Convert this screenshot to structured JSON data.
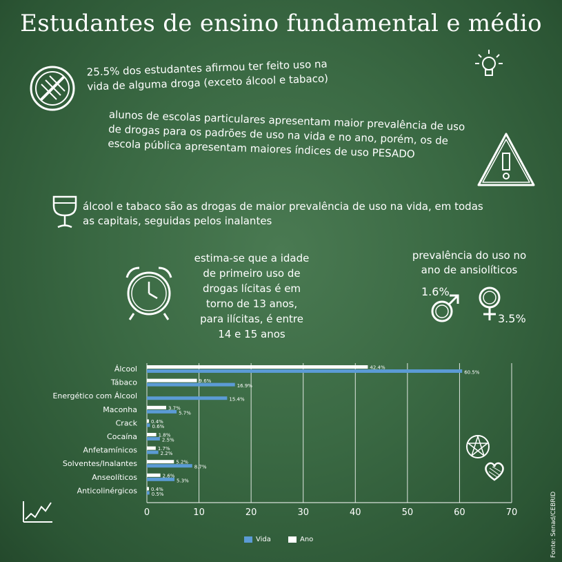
{
  "title": "Estudantes de ensino fundamental e médio",
  "facts": {
    "drug_use": "25.5% dos estudantes afirmou ter feito uso na vida de alguma droga (exceto álcool e tabaco)",
    "private_schools": "alunos de escolas particulares apresentam maior prevalência de uso de drogas para os padrões de uso na vida e no ano, porém, os de escola pública apresentam maiores índices de uso PESADO",
    "alcohol_tobacco": "álcool e tabaco são as drogas de maior prevalência de uso na vida, em todas as capitais, seguidas pelos inalantes",
    "first_use_age": "estima-se que a idade de primeiro uso de drogas lícitas é em torno de 13 anos, para ilícitas, é entre 14 e 15 anos",
    "anxiolytics_label": "prevalência do uso no ano de ansiolíticos",
    "male_pct": "1.6%",
    "female_pct": "3.5%"
  },
  "legend": {
    "vida": "Vida",
    "ano": "Ano"
  },
  "source": "Fonte: Senad/CEBRID",
  "colors": {
    "vida": "#5b9bd5",
    "ano": "#ffffff",
    "axis": "#ffffff"
  },
  "icons": [
    "no-drugs-icon",
    "lightbulb-icon",
    "warning-triangle-icon",
    "wine-glass-icon",
    "alarm-clock-icon",
    "male-symbol-icon",
    "female-symbol-icon",
    "pentagram-icon",
    "heart-icon",
    "chart-doodle-icon"
  ],
  "chart_data": {
    "type": "bar",
    "orientation": "horizontal",
    "categories": [
      "Álcool",
      "Tábaco",
      "Energético com Álcool",
      "Maconha",
      "Crack",
      "Cocaína",
      "Anfetamínicos",
      "Solventes/Inalantes",
      "Anseolíticos",
      "Anticolinérgicos"
    ],
    "series": [
      {
        "name": "Ano",
        "values": [
          42.4,
          9.6,
          null,
          3.7,
          0.4,
          1.8,
          1.7,
          5.2,
          2.6,
          0.4
        ],
        "labels": [
          "42.4%",
          "9.6%",
          "",
          "3.7%",
          "0.4%",
          "1.8%",
          "1.7%",
          "5.2%",
          "2.6%",
          "0.4%"
        ]
      },
      {
        "name": "Vida",
        "values": [
          60.5,
          16.9,
          15.4,
          5.7,
          0.6,
          2.5,
          2.2,
          8.7,
          5.3,
          0.5
        ],
        "labels": [
          "60.5%",
          "16.9%",
          "15.4%",
          "5.7%",
          "0.6%",
          "2.5%",
          "2.2%",
          "8.7%",
          "5.3%",
          "0.5%"
        ]
      }
    ],
    "xlim": [
      0,
      70
    ],
    "xticks": [
      "0",
      "10",
      "20",
      "30",
      "40",
      "50",
      "60",
      "70"
    ],
    "grid": true,
    "legend_position": "bottom"
  }
}
